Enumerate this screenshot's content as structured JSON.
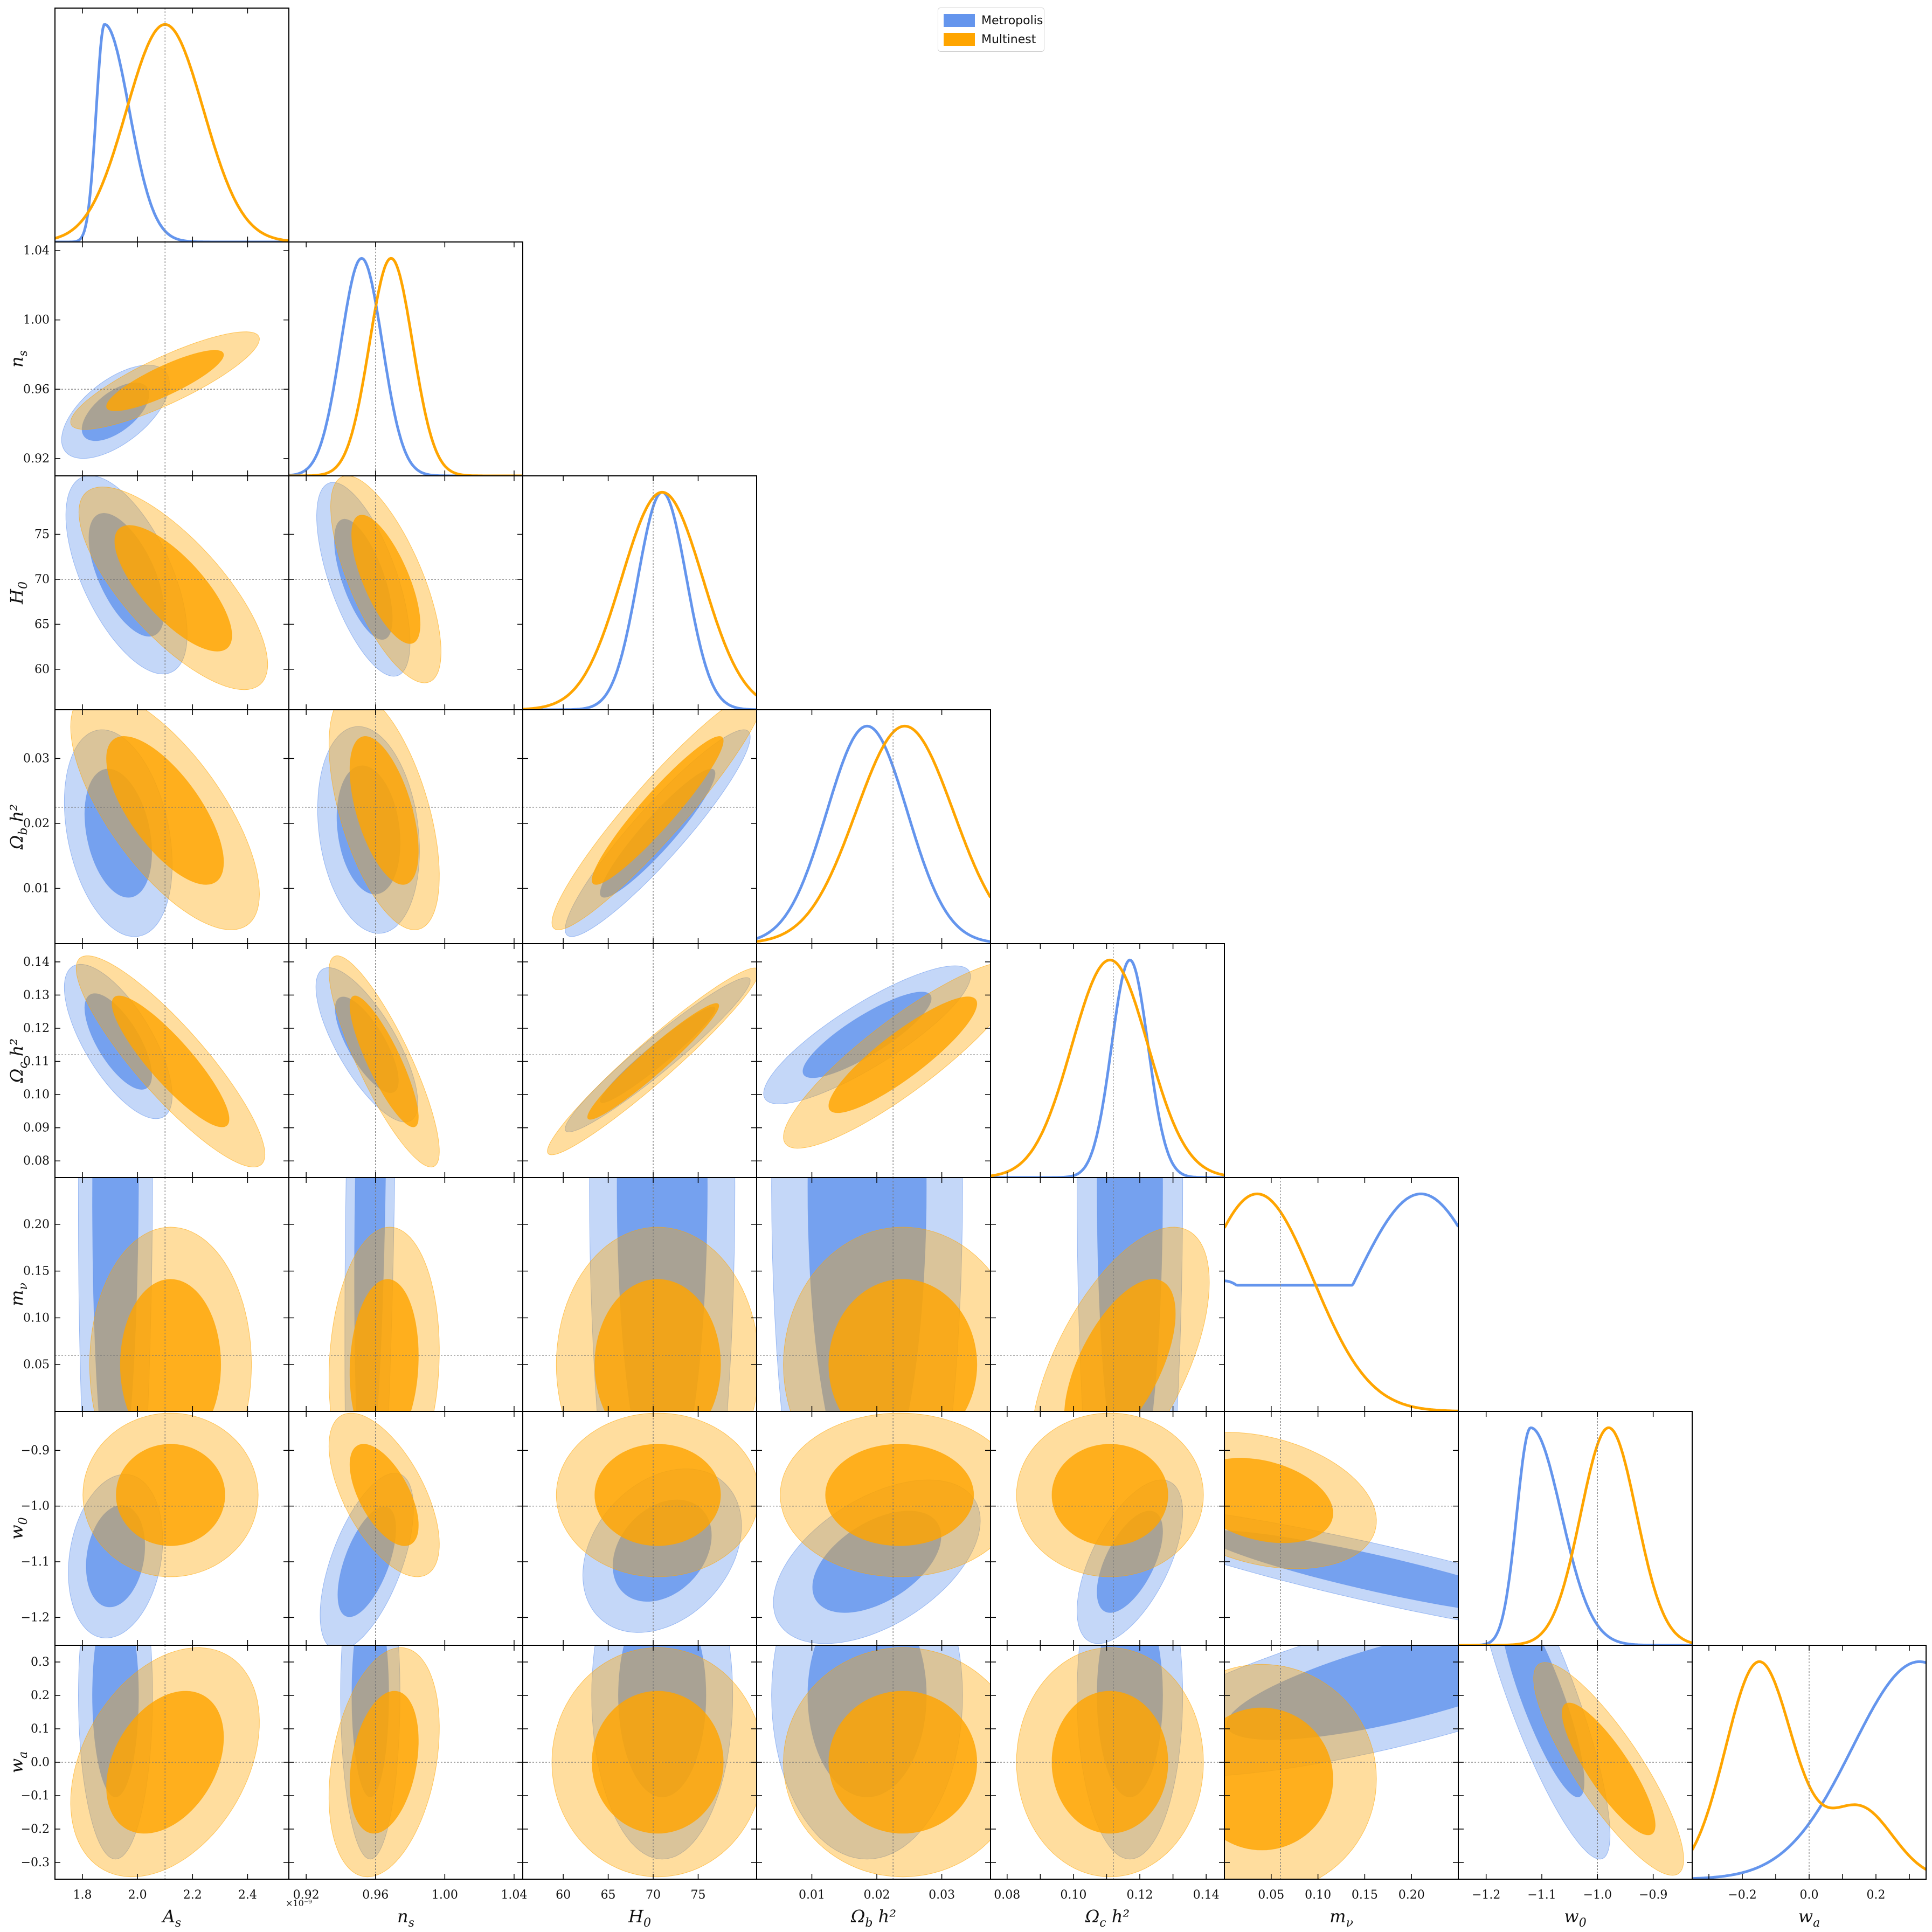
{
  "legend": [
    {
      "label": "Metropolis",
      "color": "#6495ED"
    },
    {
      "label": "Multinest",
      "color": "#FFA500"
    }
  ],
  "sci_offset": "×10⁻⁹",
  "chart_data": {
    "type": "corner",
    "parameters": [
      {
        "key": "As",
        "label": "A_s",
        "sub": "s",
        "base": "A",
        "truth": 2.1,
        "range": [
          1.7,
          2.55
        ],
        "ticks": [
          1.8,
          2.0,
          2.2,
          2.4
        ],
        "tick_labels": [
          "1.8",
          "2.0",
          "2.2",
          "2.4"
        ]
      },
      {
        "key": "ns",
        "label": "n_s",
        "base": "n",
        "sub": "s",
        "truth": 0.96,
        "range": [
          0.91,
          1.045
        ],
        "ticks": [
          0.92,
          0.96,
          1.0,
          1.04
        ],
        "tick_labels": [
          "0.92",
          "0.96",
          "1.00",
          "1.04"
        ]
      },
      {
        "key": "H0",
        "label": "H_0",
        "base": "H",
        "sub": "0",
        "truth": 70,
        "range": [
          55.5,
          81.5
        ],
        "ticks": [
          60,
          65,
          70,
          75
        ],
        "tick_labels": [
          "60",
          "65",
          "70",
          "75"
        ]
      },
      {
        "key": "ombh2",
        "label": "Ω_b h²",
        "base": "Ω",
        "sub": "b",
        "tail": " h²",
        "truth": 0.0225,
        "range": [
          0.0015,
          0.0375
        ],
        "ticks": [
          0.01,
          0.02,
          0.03
        ],
        "tick_labels": [
          "0.01",
          "0.02",
          "0.03"
        ]
      },
      {
        "key": "omch2",
        "label": "Ω_c h²",
        "base": "Ω",
        "sub": "c",
        "tail": " h²",
        "truth": 0.112,
        "range": [
          0.075,
          0.1455
        ],
        "ticks": [
          0.08,
          0.09,
          0.1,
          0.11,
          0.12,
          0.13,
          0.14
        ],
        "tick_labels_x": [
          "0.08",
          "",
          "0.10",
          "",
          "0.12",
          "",
          "0.14"
        ],
        "tick_labels_y": [
          "0.08",
          "0.09",
          "0.10",
          "0.11",
          "0.12",
          "0.13",
          "0.14"
        ]
      },
      {
        "key": "mnu",
        "label": "m_ν",
        "base": "m",
        "sub": "ν",
        "truth": 0.06,
        "range": [
          0.0,
          0.25
        ],
        "ticks": [
          0.05,
          0.1,
          0.15,
          0.2
        ],
        "tick_labels": [
          "0.05",
          "0.10",
          "0.15",
          "0.20"
        ]
      },
      {
        "key": "w0",
        "label": "w_0",
        "base": "w",
        "sub": "0",
        "truth": -1.0,
        "range": [
          -1.25,
          -0.83
        ],
        "ticks": [
          -1.2,
          -1.1,
          -1.0,
          -0.9
        ],
        "tick_labels": [
          "−1.2",
          "−1.1",
          "−1.0",
          "−0.9"
        ]
      },
      {
        "key": "wa",
        "label": "w_a",
        "base": "w",
        "sub": "a",
        "truth": 0.0,
        "range": [
          -0.35,
          0.35
        ],
        "ticks": [
          -0.3,
          -0.2,
          -0.1,
          0.0,
          0.1,
          0.2,
          0.3
        ],
        "tick_labels_x": [
          "",
          "−0.2",
          "",
          "0.0",
          "",
          "0.2",
          ""
        ],
        "tick_labels_y": [
          "−0.3",
          "−0.2",
          "−0.1",
          "0.0",
          "0.1",
          "0.2",
          "0.3"
        ]
      }
    ],
    "series": [
      {
        "name": "Metropolis",
        "color": "#6495ED",
        "marginals": [
          {
            "type": "skewed",
            "peak": 1.88,
            "sl": 0.03,
            "sr": 0.09
          },
          {
            "type": "gauss",
            "mean": 0.952,
            "sd": 0.012
          },
          {
            "type": "gauss",
            "mean": 71.0,
            "sd": 2.7
          },
          {
            "type": "gauss",
            "mean": 0.0185,
            "sd": 0.0062
          },
          {
            "type": "gauss",
            "mean": 0.117,
            "sd": 0.0055
          },
          {
            "type": "bimodal",
            "peak_high": 0.21,
            "value_low": 0.6
          },
          {
            "type": "skewed",
            "peak": -1.12,
            "sl": 0.025,
            "sr": 0.055
          },
          {
            "type": "rising",
            "peak": 0.33,
            "sd": 0.2
          }
        ]
      },
      {
        "name": "Multinest",
        "color": "#FFA500",
        "marginals": [
          {
            "type": "gauss",
            "mean": 2.1,
            "sd": 0.14
          },
          {
            "type": "gauss",
            "mean": 0.969,
            "sd": 0.0125
          },
          {
            "type": "gauss",
            "mean": 71.0,
            "sd": 4.5
          },
          {
            "type": "gauss",
            "mean": 0.0243,
            "sd": 0.0075
          },
          {
            "type": "gauss",
            "mean": 0.111,
            "sd": 0.0115
          },
          {
            "type": "halfgauss",
            "peak": 0.035,
            "sd": 0.06
          },
          {
            "type": "gauss",
            "mean": -0.98,
            "sd": 0.05
          },
          {
            "type": "twohump",
            "peak1": -0.15,
            "sd1": 0.1,
            "peak2": 0.15,
            "sd2": 0.1,
            "ratio": 0.55
          }
        ]
      }
    ],
    "contours": [
      {
        "x": "As",
        "y": "ns",
        "metropolis": {
          "cx": 1.92,
          "cy": 0.947,
          "sx": 0.08,
          "sy": 0.011,
          "rho": 0.6
        },
        "multinest": {
          "cx": 2.1,
          "cy": 0.965,
          "sx": 0.14,
          "sy": 0.0115,
          "rho": 0.85
        }
      },
      {
        "x": "As",
        "y": "H0",
        "metropolis": {
          "cx": 1.96,
          "cy": 70.5,
          "sx": 0.09,
          "sy": 4.5,
          "rho": -0.6
        },
        "multinest": {
          "cx": 2.13,
          "cy": 69.0,
          "sx": 0.14,
          "sy": 4.6,
          "rho": -0.75
        }
      },
      {
        "x": "As",
        "y": "ombh2",
        "metropolis": {
          "cx": 1.93,
          "cy": 0.0185,
          "sx": 0.08,
          "sy": 0.0065,
          "rho": -0.3
        },
        "multinest": {
          "cx": 2.1,
          "cy": 0.022,
          "sx": 0.14,
          "sy": 0.0075,
          "rho": -0.7
        }
      },
      {
        "x": "As",
        "y": "omch2",
        "metropolis": {
          "cx": 1.93,
          "cy": 0.116,
          "sx": 0.08,
          "sy": 0.0095,
          "rho": -0.7
        },
        "multinest": {
          "cx": 2.12,
          "cy": 0.11,
          "sx": 0.14,
          "sy": 0.013,
          "rho": -0.88
        }
      },
      {
        "x": "As",
        "y": "mnu",
        "metropolis": {
          "cx": 1.92,
          "cy": 0.24,
          "sx": 0.055,
          "sy": 0.22,
          "rho": 0.05
        },
        "multinest": {
          "cx": 2.12,
          "cy": 0.05,
          "sx": 0.12,
          "sy": 0.06,
          "rho": 0.0
        }
      },
      {
        "x": "As",
        "y": "w0",
        "metropolis": {
          "cx": 1.92,
          "cy": -1.09,
          "sx": 0.07,
          "sy": 0.06,
          "rho": 0.2
        },
        "multinest": {
          "cx": 2.12,
          "cy": -0.98,
          "sx": 0.13,
          "sy": 0.06,
          "rho": 0.0
        }
      },
      {
        "x": "As",
        "y": "wa",
        "metropolis": {
          "cx": 1.92,
          "cy": 0.2,
          "sx": 0.055,
          "sy": 0.2,
          "rho": 0.0
        },
        "multinest": {
          "cx": 2.1,
          "cy": 0.0,
          "sx": 0.14,
          "sy": 0.14,
          "rho": 0.35
        }
      },
      {
        "x": "ns",
        "y": "H0",
        "metropolis": {
          "cx": 0.953,
          "cy": 70.0,
          "sx": 0.011,
          "sy": 4.4,
          "rho": -0.65
        },
        "multinest": {
          "cx": 0.966,
          "cy": 70.0,
          "sx": 0.013,
          "sy": 4.7,
          "rho": -0.7
        }
      },
      {
        "x": "ns",
        "y": "ombh2",
        "metropolis": {
          "cx": 0.956,
          "cy": 0.019,
          "sx": 0.012,
          "sy": 0.0065,
          "rho": -0.2
        },
        "multinest": {
          "cx": 0.965,
          "cy": 0.022,
          "sx": 0.013,
          "sy": 0.0075,
          "rho": -0.55
        }
      },
      {
        "x": "ns",
        "y": "omch2",
        "metropolis": {
          "cx": 0.955,
          "cy": 0.115,
          "sx": 0.012,
          "sy": 0.0095,
          "rho": -0.75
        },
        "multinest": {
          "cx": 0.965,
          "cy": 0.11,
          "sx": 0.013,
          "sy": 0.013,
          "rho": -0.85
        }
      },
      {
        "x": "ns",
        "y": "mnu",
        "metropolis": {
          "cx": 0.957,
          "cy": 0.24,
          "sx": 0.006,
          "sy": 0.22,
          "rho": 0.3
        },
        "multinest": {
          "cx": 0.965,
          "cy": 0.05,
          "sx": 0.013,
          "sy": 0.06,
          "rho": 0.1
        }
      },
      {
        "x": "ns",
        "y": "w0",
        "metropolis": {
          "cx": 0.955,
          "cy": -1.1,
          "sx": 0.011,
          "sy": 0.065,
          "rho": 0.6
        },
        "multinest": {
          "cx": 0.965,
          "cy": -0.98,
          "sx": 0.013,
          "sy": 0.06,
          "rho": -0.6
        }
      },
      {
        "x": "ns",
        "y": "wa",
        "metropolis": {
          "cx": 0.957,
          "cy": 0.2,
          "sx": 0.007,
          "sy": 0.2,
          "rho": 0.0
        },
        "multinest": {
          "cx": 0.965,
          "cy": 0.0,
          "sx": 0.013,
          "sy": 0.14,
          "rho": 0.3
        }
      },
      {
        "x": "H0",
        "y": "ombh2",
        "metropolis": {
          "cx": 70.5,
          "cy": 0.0185,
          "sx": 4.2,
          "sy": 0.0065,
          "rho": 0.93
        },
        "multinest": {
          "cx": 70.5,
          "cy": 0.022,
          "sx": 4.8,
          "sy": 0.0075,
          "rho": 0.94
        }
      },
      {
        "x": "H0",
        "y": "omch2",
        "metropolis": {
          "cx": 70.5,
          "cy": 0.112,
          "sx": 4.2,
          "sy": 0.0095,
          "rho": 0.96
        },
        "multinest": {
          "cx": 70.0,
          "cy": 0.11,
          "sx": 4.8,
          "sy": 0.0115,
          "rho": 0.96
        }
      },
      {
        "x": "H0",
        "y": "mnu",
        "metropolis": {
          "cx": 71.0,
          "cy": 0.24,
          "sx": 3.3,
          "sy": 0.22,
          "rho": 0.0
        },
        "multinest": {
          "cx": 70.5,
          "cy": 0.05,
          "sx": 4.6,
          "sy": 0.06,
          "rho": 0.0
        }
      },
      {
        "x": "H0",
        "y": "w0",
        "metropolis": {
          "cx": 71.0,
          "cy": -1.08,
          "sx": 3.6,
          "sy": 0.06,
          "rho": 0.3
        },
        "multinest": {
          "cx": 70.5,
          "cy": -0.98,
          "sx": 4.6,
          "sy": 0.06,
          "rho": 0.0
        }
      },
      {
        "x": "H0",
        "y": "wa",
        "metropolis": {
          "cx": 71.0,
          "cy": 0.2,
          "sx": 3.2,
          "sy": 0.2,
          "rho": 0.0
        },
        "multinest": {
          "cx": 70.5,
          "cy": 0.0,
          "sx": 4.8,
          "sy": 0.14,
          "rho": 0.0
        }
      },
      {
        "x": "ombh2",
        "y": "omch2",
        "metropolis": {
          "cx": 0.0185,
          "cy": 0.118,
          "sx": 0.0065,
          "sy": 0.0085,
          "rho": 0.85
        },
        "multinest": {
          "cx": 0.024,
          "cy": 0.112,
          "sx": 0.0075,
          "sy": 0.0115,
          "rho": 0.88
        }
      },
      {
        "x": "ombh2",
        "y": "mnu",
        "metropolis": {
          "cx": 0.0185,
          "cy": 0.24,
          "sx": 0.006,
          "sy": 0.22,
          "rho": 0.0
        },
        "multinest": {
          "cx": 0.024,
          "cy": 0.05,
          "sx": 0.0075,
          "sy": 0.06,
          "rho": 0.0
        }
      },
      {
        "x": "ombh2",
        "y": "w0",
        "metropolis": {
          "cx": 0.02,
          "cy": -1.1,
          "sx": 0.0065,
          "sy": 0.06,
          "rho": 0.5
        },
        "multinest": {
          "cx": 0.0235,
          "cy": -0.98,
          "sx": 0.0075,
          "sy": 0.06,
          "rho": 0.0
        }
      },
      {
        "x": "ombh2",
        "y": "wa",
        "metropolis": {
          "cx": 0.0185,
          "cy": 0.2,
          "sx": 0.006,
          "sy": 0.2,
          "rho": 0.0
        },
        "multinest": {
          "cx": 0.024,
          "cy": 0.0,
          "sx": 0.0075,
          "sy": 0.14,
          "rho": 0.0
        }
      },
      {
        "x": "omch2",
        "y": "mnu",
        "metropolis": {
          "cx": 0.117,
          "cy": 0.24,
          "sx": 0.0065,
          "sy": 0.22,
          "rho": 0.0
        },
        "multinest": {
          "cx": 0.114,
          "cy": 0.05,
          "sx": 0.011,
          "sy": 0.06,
          "rho": 0.6
        }
      },
      {
        "x": "omch2",
        "y": "w0",
        "metropolis": {
          "cx": 0.117,
          "cy": -1.1,
          "sx": 0.0065,
          "sy": 0.06,
          "rho": 0.6
        },
        "multinest": {
          "cx": 0.111,
          "cy": -0.98,
          "sx": 0.0115,
          "sy": 0.06,
          "rho": 0.0
        }
      },
      {
        "x": "omch2",
        "y": "wa",
        "metropolis": {
          "cx": 0.117,
          "cy": 0.2,
          "sx": 0.0065,
          "sy": 0.2,
          "rho": 0.0
        },
        "multinest": {
          "cx": 0.111,
          "cy": 0.0,
          "sx": 0.0115,
          "sy": 0.14,
          "rho": 0.0
        }
      },
      {
        "x": "mnu",
        "y": "w0",
        "metropolis": {
          "cx": 0.16,
          "cy": -1.12,
          "sx": 0.12,
          "sy": 0.05,
          "rho": -0.9
        },
        "multinest": {
          "cx": 0.04,
          "cy": -0.99,
          "sx": 0.05,
          "sy": 0.05,
          "rho": -0.3
        }
      },
      {
        "x": "mnu",
        "y": "wa",
        "metropolis": {
          "cx": 0.2,
          "cy": 0.25,
          "sx": 0.13,
          "sy": 0.12,
          "rho": 0.75
        },
        "multinest": {
          "cx": 0.04,
          "cy": -0.05,
          "sx": 0.05,
          "sy": 0.14,
          "rho": 0.0
        }
      },
      {
        "x": "w0",
        "y": "wa",
        "metropolis": {
          "cx": -1.1,
          "cy": 0.2,
          "sx": 0.05,
          "sy": 0.2,
          "rho": -0.85
        },
        "multinest": {
          "cx": -0.98,
          "cy": -0.02,
          "sx": 0.055,
          "sy": 0.13,
          "rho": -0.85
        }
      }
    ],
    "grid": false,
    "legend_position": "top-center"
  }
}
